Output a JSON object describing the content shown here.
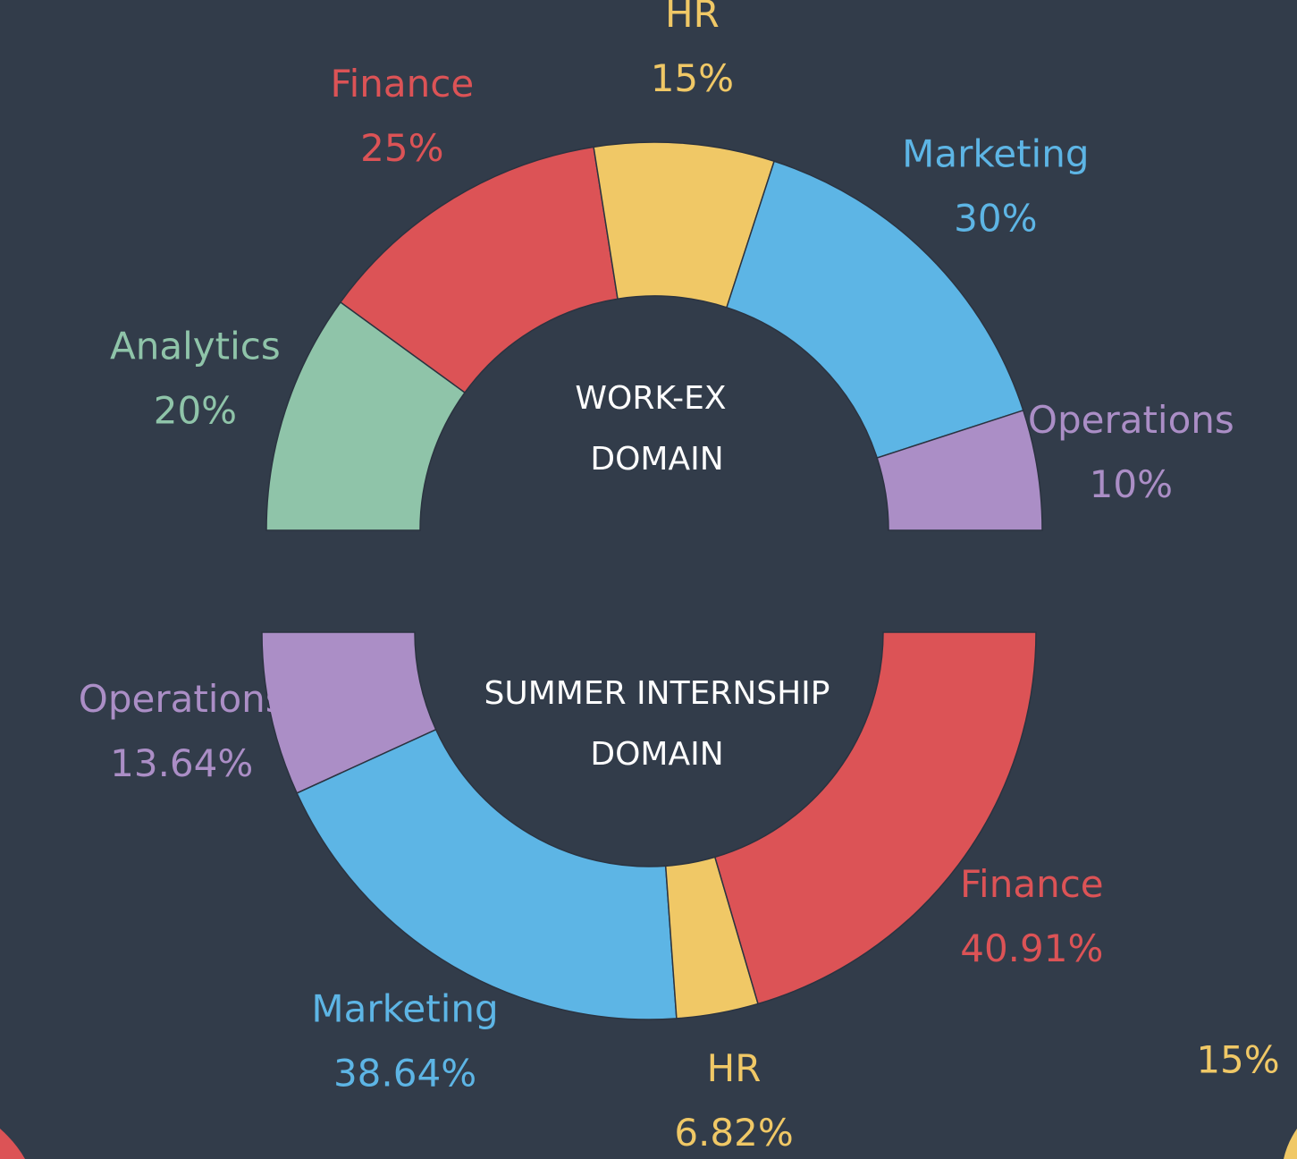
{
  "chart_data": [
    {
      "type": "pie",
      "half": "top",
      "center_text": [
        "WORK-EX",
        "DOMAIN"
      ],
      "categories": [
        "Analytics",
        "Finance",
        "HR",
        "Marketing",
        "Operations"
      ],
      "values": [
        20,
        25,
        15,
        30,
        10
      ],
      "value_labels": [
        "20%",
        "25%",
        "15%",
        "30%",
        "10%"
      ],
      "colors": [
        "#8fc4a9",
        "#dc5356",
        "#f0c866",
        "#5db5e5",
        "#ab8ec6"
      ]
    },
    {
      "type": "pie",
      "half": "bottom",
      "center_text": [
        "SUMMER INTERNSHIP",
        "DOMAIN"
      ],
      "categories": [
        "Operations",
        "Marketing",
        "HR",
        "Finance"
      ],
      "values": [
        13.64,
        38.64,
        6.82,
        40.91
      ],
      "value_labels": [
        "13.64%",
        "38.64%",
        "6.82%",
        "40.91%"
      ],
      "colors": [
        "#ab8ec6",
        "#5db5e5",
        "#f0c866",
        "#dc5356"
      ]
    }
  ],
  "fragment_label": "15%"
}
